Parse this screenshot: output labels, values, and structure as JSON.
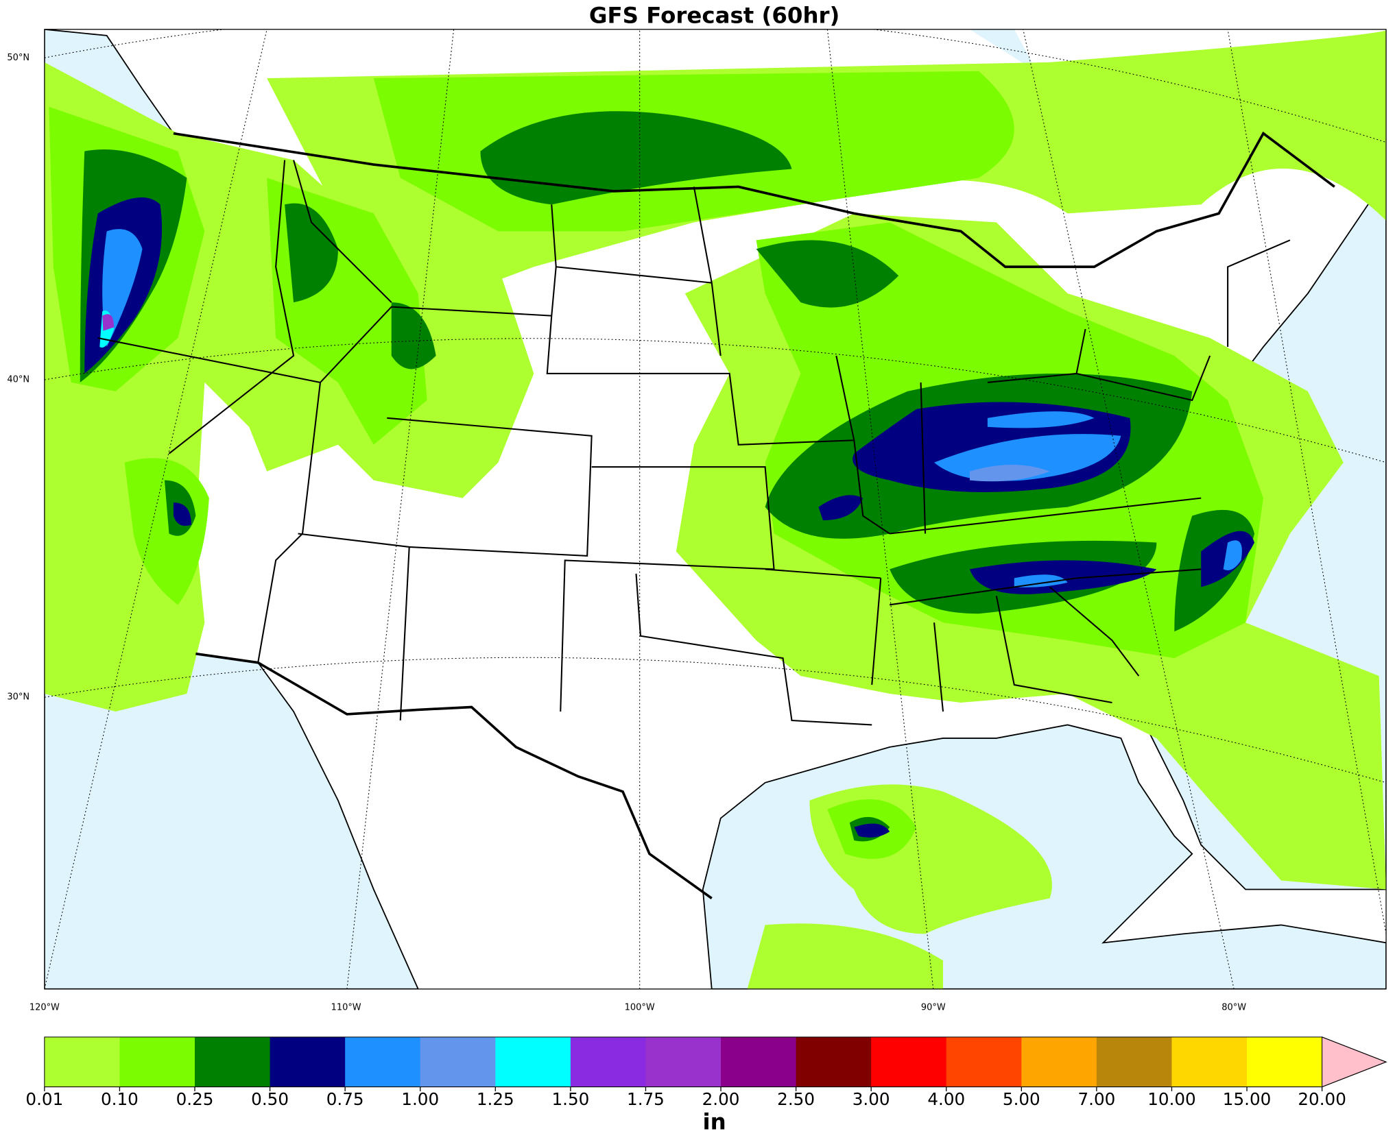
{
  "map": {
    "title": "GFS Forecast (60hr)",
    "lat_labels": [
      "50°N",
      "40°N",
      "30°N"
    ],
    "lon_labels": [
      "120°W",
      "110°W",
      "100°W",
      "90°W",
      "80°W"
    ],
    "colorbar": {
      "label": "in",
      "ticks": [
        {
          "value": 0.01,
          "label": "0.01"
        },
        {
          "value": 0.1,
          "label": "0.10"
        },
        {
          "value": 0.25,
          "label": "0.25"
        },
        {
          "value": 0.5,
          "label": "0.50"
        },
        {
          "value": 0.75,
          "label": "0.75"
        },
        {
          "value": 1,
          "label": "1.00"
        },
        {
          "value": 1.25,
          "label": "1.25"
        },
        {
          "value": 1.5,
          "label": "1.50"
        },
        {
          "value": 1.75,
          "label": "1.75"
        },
        {
          "value": 2,
          "label": "2.00"
        },
        {
          "value": 2.5,
          "label": "2.50"
        },
        {
          "value": 3,
          "label": "3.00"
        },
        {
          "value": 4,
          "label": "4.00"
        },
        {
          "value": 5,
          "label": "5.00"
        },
        {
          "value": 7,
          "label": "7.00"
        },
        {
          "value": 10,
          "label": "10.00"
        },
        {
          "value": 15,
          "label": "15.00"
        },
        {
          "value": 20,
          "label": "20.00"
        }
      ],
      "colors": [
        "#adff2f",
        "#7cfc00",
        "#008000",
        "#000080",
        "#1e90ff",
        "#6495ed",
        "#00ffff",
        "#8a2be2",
        "#9932cc",
        "#8b008b",
        "#800000",
        "#ff0000",
        "#ff4500",
        "#ffa500",
        "#b8860b",
        "#ffd700",
        "#ffff00"
      ],
      "extend_color": "#ffc0cb"
    }
  }
}
